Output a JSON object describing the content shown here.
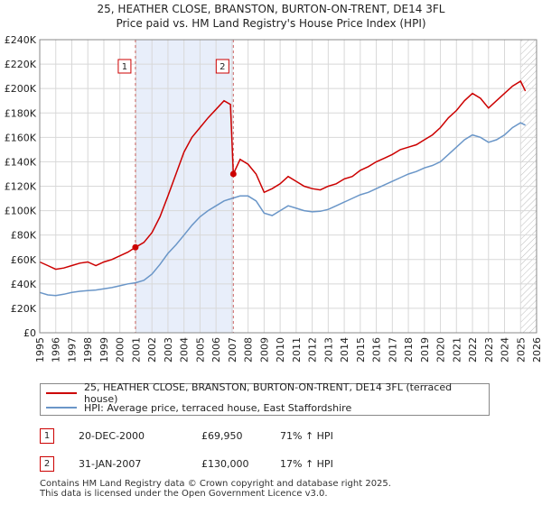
{
  "chart_data": {
    "type": "line",
    "title": "25, HEATHER CLOSE, BRANSTON, BURTON-ON-TRENT, DE14 3FL",
    "subtitle": "Price paid vs. HM Land Registry's House Price Index (HPI)",
    "xlim": [
      1995,
      2026
    ],
    "ylim": [
      0,
      240000
    ],
    "y_ticks": [
      0,
      20000,
      40000,
      60000,
      80000,
      100000,
      120000,
      140000,
      160000,
      180000,
      200000,
      220000,
      240000
    ],
    "y_tick_labels": [
      "£0",
      "£20K",
      "£40K",
      "£60K",
      "£80K",
      "£100K",
      "£120K",
      "£140K",
      "£160K",
      "£180K",
      "£200K",
      "£220K",
      "£240K"
    ],
    "x_ticks": [
      1995,
      1996,
      1997,
      1998,
      1999,
      2000,
      2001,
      2002,
      2003,
      2004,
      2005,
      2006,
      2007,
      2008,
      2009,
      2010,
      2011,
      2012,
      2013,
      2014,
      2015,
      2016,
      2017,
      2018,
      2019,
      2020,
      2021,
      2022,
      2023,
      2024,
      2025,
      2026
    ],
    "grid": true,
    "series": [
      {
        "name": "25, HEATHER CLOSE, BRANSTON, BURTON-ON-TRENT, DE14 3FL (terraced house)",
        "color": "#cc0000",
        "points": [
          [
            1995.0,
            58000
          ],
          [
            1995.5,
            55000
          ],
          [
            1996.0,
            52000
          ],
          [
            1996.5,
            53000
          ],
          [
            1997.0,
            55000
          ],
          [
            1997.5,
            57000
          ],
          [
            1998.0,
            58000
          ],
          [
            1998.5,
            55000
          ],
          [
            1999.0,
            58000
          ],
          [
            1999.5,
            60000
          ],
          [
            2000.0,
            63000
          ],
          [
            2000.5,
            66000
          ],
          [
            2000.97,
            69950
          ],
          [
            2001.5,
            74000
          ],
          [
            2002.0,
            82000
          ],
          [
            2002.5,
            95000
          ],
          [
            2003.0,
            112000
          ],
          [
            2003.5,
            130000
          ],
          [
            2004.0,
            148000
          ],
          [
            2004.5,
            160000
          ],
          [
            2005.0,
            168000
          ],
          [
            2005.5,
            176000
          ],
          [
            2006.0,
            183000
          ],
          [
            2006.5,
            190000
          ],
          [
            2006.9,
            187000
          ],
          [
            2007.08,
            130000
          ],
          [
            2007.5,
            142000
          ],
          [
            2008.0,
            138000
          ],
          [
            2008.5,
            130000
          ],
          [
            2009.0,
            115000
          ],
          [
            2009.5,
            118000
          ],
          [
            2010.0,
            122000
          ],
          [
            2010.5,
            128000
          ],
          [
            2011.0,
            124000
          ],
          [
            2011.5,
            120000
          ],
          [
            2012.0,
            118000
          ],
          [
            2012.5,
            117000
          ],
          [
            2013.0,
            120000
          ],
          [
            2013.5,
            122000
          ],
          [
            2014.0,
            126000
          ],
          [
            2014.5,
            128000
          ],
          [
            2015.0,
            133000
          ],
          [
            2015.5,
            136000
          ],
          [
            2016.0,
            140000
          ],
          [
            2016.5,
            143000
          ],
          [
            2017.0,
            146000
          ],
          [
            2017.5,
            150000
          ],
          [
            2018.0,
            152000
          ],
          [
            2018.5,
            154000
          ],
          [
            2019.0,
            158000
          ],
          [
            2019.5,
            162000
          ],
          [
            2020.0,
            168000
          ],
          [
            2020.5,
            176000
          ],
          [
            2021.0,
            182000
          ],
          [
            2021.5,
            190000
          ],
          [
            2022.0,
            196000
          ],
          [
            2022.5,
            192000
          ],
          [
            2023.0,
            184000
          ],
          [
            2023.5,
            190000
          ],
          [
            2024.0,
            196000
          ],
          [
            2024.5,
            202000
          ],
          [
            2025.0,
            206000
          ],
          [
            2025.3,
            198000
          ]
        ]
      },
      {
        "name": "HPI: Average price, terraced house, East Staffordshire",
        "color": "#6a96c8",
        "points": [
          [
            1995.0,
            33000
          ],
          [
            1995.5,
            31000
          ],
          [
            1996.0,
            30500
          ],
          [
            1996.5,
            31500
          ],
          [
            1997.0,
            33000
          ],
          [
            1997.5,
            34000
          ],
          [
            1998.0,
            34500
          ],
          [
            1998.5,
            35000
          ],
          [
            1999.0,
            36000
          ],
          [
            1999.5,
            37000
          ],
          [
            2000.0,
            38500
          ],
          [
            2000.5,
            40000
          ],
          [
            2001.0,
            41000
          ],
          [
            2001.5,
            43000
          ],
          [
            2002.0,
            48000
          ],
          [
            2002.5,
            56000
          ],
          [
            2003.0,
            65000
          ],
          [
            2003.5,
            72000
          ],
          [
            2004.0,
            80000
          ],
          [
            2004.5,
            88000
          ],
          [
            2005.0,
            95000
          ],
          [
            2005.5,
            100000
          ],
          [
            2006.0,
            104000
          ],
          [
            2006.5,
            108000
          ],
          [
            2007.0,
            110000
          ],
          [
            2007.5,
            112000
          ],
          [
            2008.0,
            112000
          ],
          [
            2008.5,
            108000
          ],
          [
            2009.0,
            98000
          ],
          [
            2009.5,
            96000
          ],
          [
            2010.0,
            100000
          ],
          [
            2010.5,
            104000
          ],
          [
            2011.0,
            102000
          ],
          [
            2011.5,
            100000
          ],
          [
            2012.0,
            99000
          ],
          [
            2012.5,
            99500
          ],
          [
            2013.0,
            101000
          ],
          [
            2013.5,
            104000
          ],
          [
            2014.0,
            107000
          ],
          [
            2014.5,
            110000
          ],
          [
            2015.0,
            113000
          ],
          [
            2015.5,
            115000
          ],
          [
            2016.0,
            118000
          ],
          [
            2016.5,
            121000
          ],
          [
            2017.0,
            124000
          ],
          [
            2017.5,
            127000
          ],
          [
            2018.0,
            130000
          ],
          [
            2018.5,
            132000
          ],
          [
            2019.0,
            135000
          ],
          [
            2019.5,
            137000
          ],
          [
            2020.0,
            140000
          ],
          [
            2020.5,
            146000
          ],
          [
            2021.0,
            152000
          ],
          [
            2021.5,
            158000
          ],
          [
            2022.0,
            162000
          ],
          [
            2022.5,
            160000
          ],
          [
            2023.0,
            156000
          ],
          [
            2023.5,
            158000
          ],
          [
            2024.0,
            162000
          ],
          [
            2024.5,
            168000
          ],
          [
            2025.0,
            172000
          ],
          [
            2025.3,
            170000
          ]
        ]
      }
    ],
    "sales": [
      {
        "label": "1",
        "x": 2000.97,
        "y": 69950
      },
      {
        "label": "2",
        "x": 2007.08,
        "y": 130000
      }
    ],
    "shaded_range": [
      2000.97,
      2007.08
    ],
    "hatched_from": 2025.0
  },
  "legend": {
    "property_label": "25, HEATHER CLOSE, BRANSTON, BURTON-ON-TRENT, DE14 3FL (terraced house)",
    "hpi_label": "HPI: Average price, terraced house, East Staffordshire"
  },
  "transactions": [
    {
      "num": "1",
      "date": "20-DEC-2000",
      "price": "£69,950",
      "hpi": "71% ↑ HPI"
    },
    {
      "num": "2",
      "date": "31-JAN-2007",
      "price": "£130,000",
      "hpi": "17% ↑ HPI"
    }
  ],
  "footer": {
    "line1": "Contains HM Land Registry data © Crown copyright and database right 2025.",
    "line2": "This data is licensed under the Open Government Licence v3.0."
  }
}
